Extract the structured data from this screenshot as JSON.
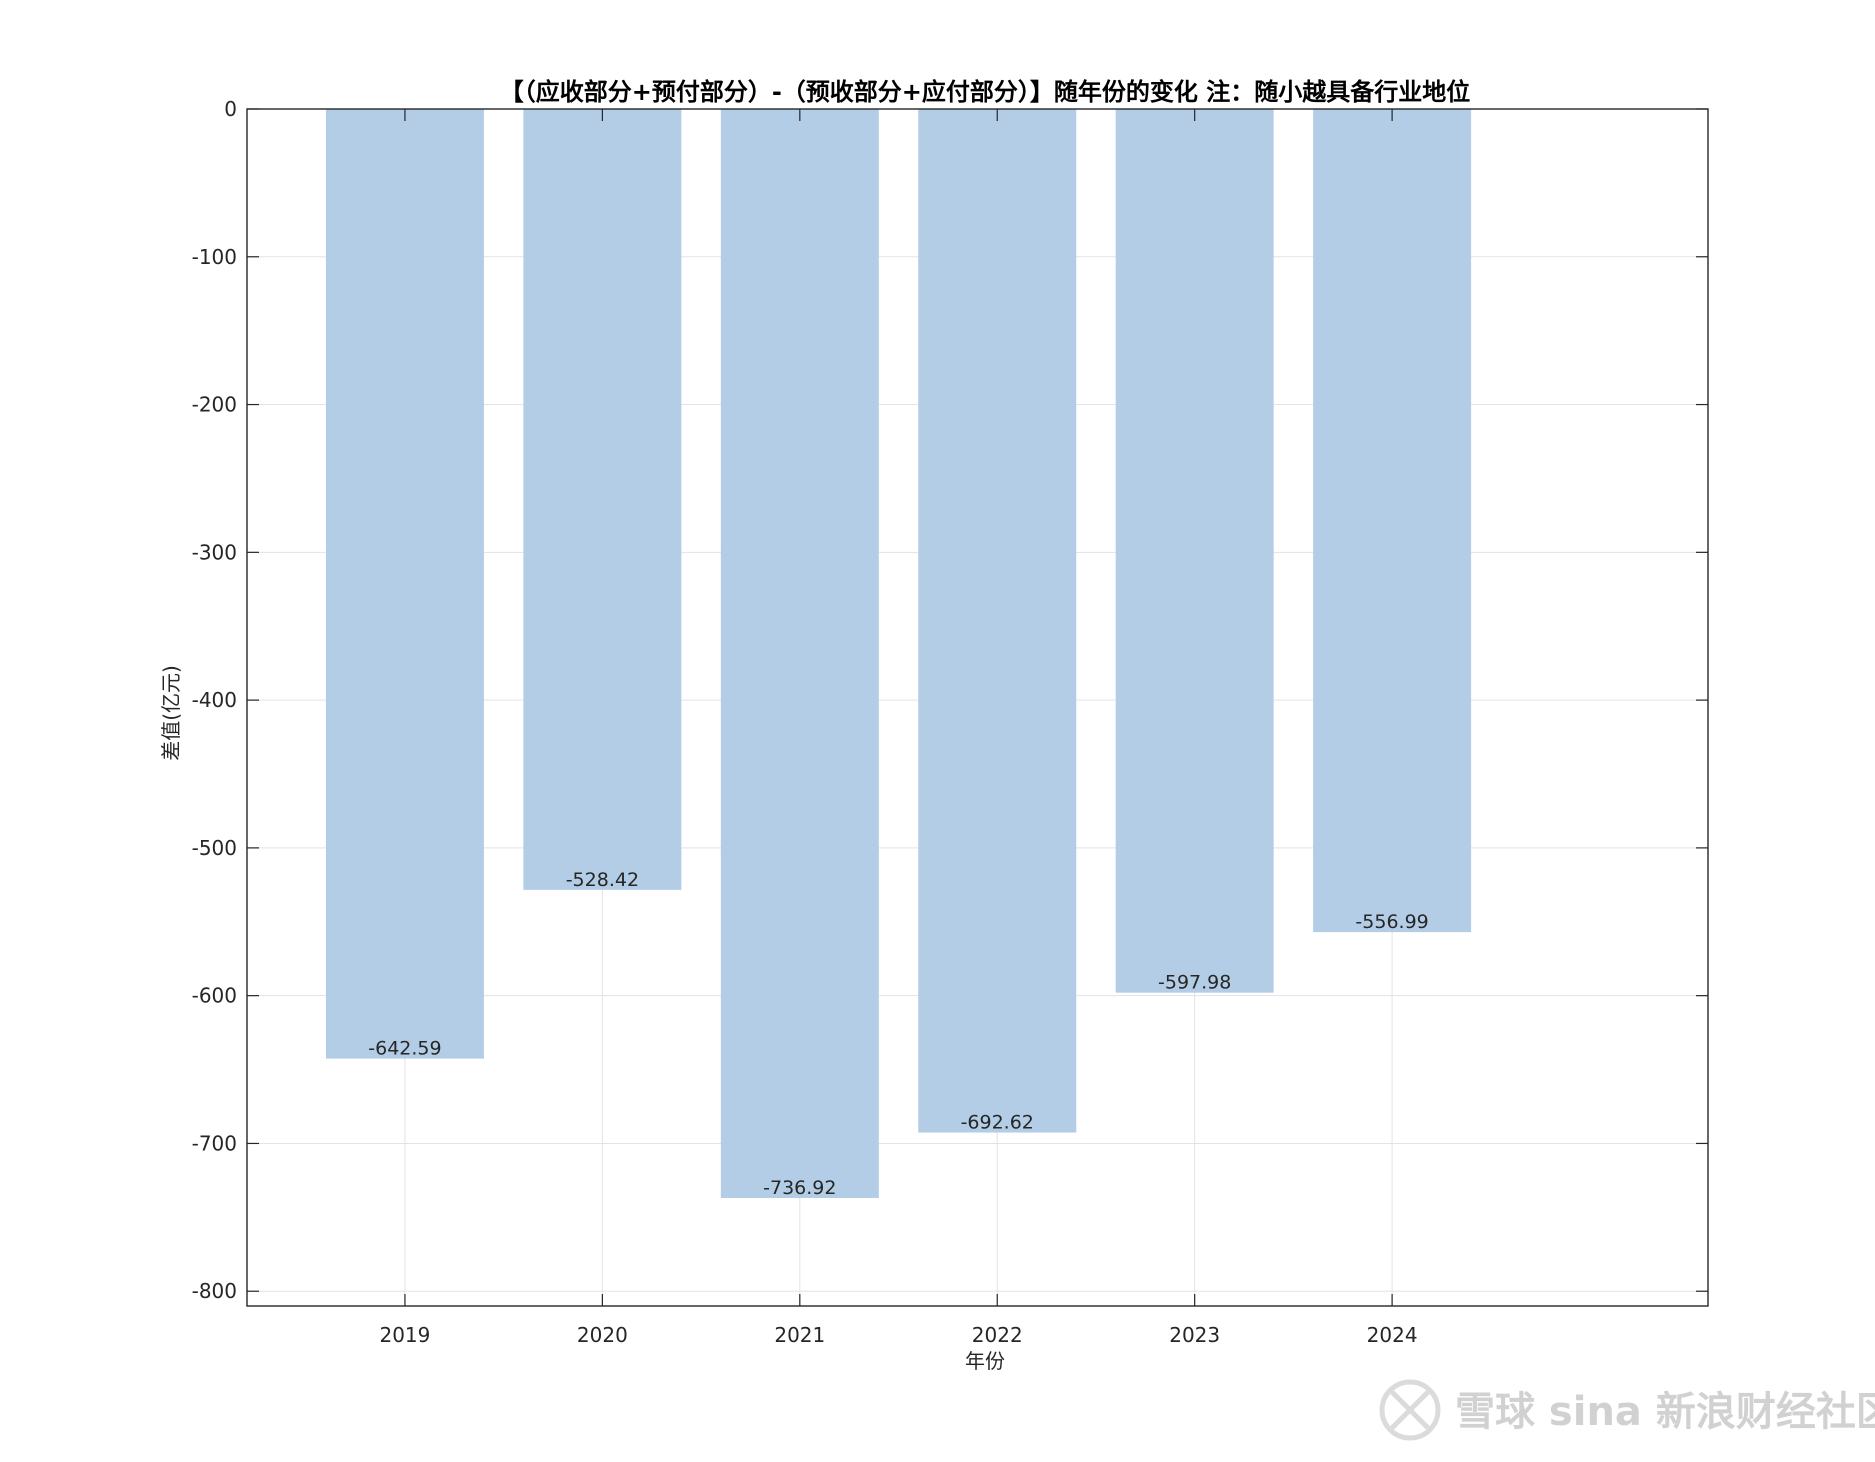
{
  "chart_data": {
    "type": "bar",
    "title": "【（应收部分+预付部分）-（预收部分+应付部分）】随年份的变化 注：随小越具备行业地位",
    "xlabel": "年份",
    "ylabel": "差值(亿元)",
    "categories": [
      "2019",
      "2020",
      "2021",
      "2022",
      "2023",
      "2024"
    ],
    "values": [
      -642.59,
      -528.42,
      -736.92,
      -692.62,
      -597.98,
      -556.99
    ],
    "data_labels": [
      "-642.59",
      "-528.42",
      "-736.92",
      "-692.62",
      "-597.98",
      "-556.99"
    ],
    "ylim": [
      -810,
      0
    ],
    "xlim": [
      0.2,
      7.6
    ],
    "yticks": [
      0,
      -100,
      -200,
      -300,
      -400,
      -500,
      -600,
      -700,
      -800
    ],
    "ytick_labels": [
      "0",
      "-100",
      "-200",
      "-300",
      "-400",
      "-500",
      "-600",
      "-700",
      "-800"
    ],
    "grid": true,
    "bar_color": "#b3cde6",
    "grid_color": "#e3e3e3",
    "axis_color": "#262626"
  },
  "watermark": {
    "text": "雪球 sina 新浪财经社区",
    "color": "#9a9a9a"
  }
}
